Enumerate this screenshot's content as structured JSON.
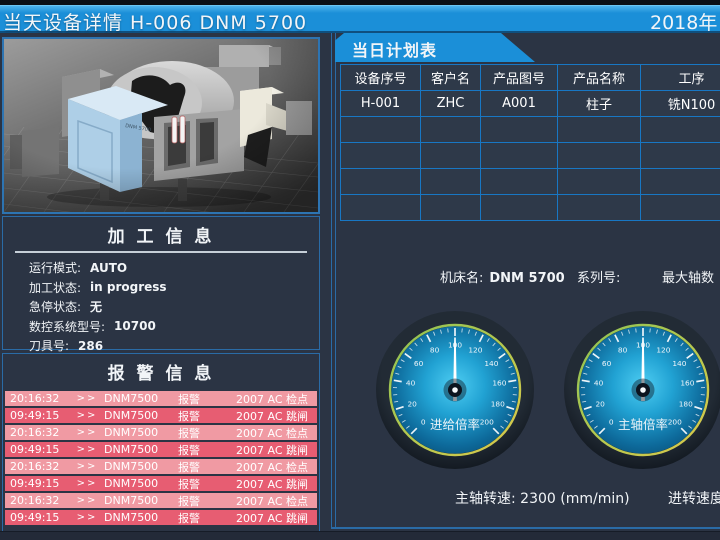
{
  "titlebar": {
    "title": "当天设备详情  H-006   DNM 5700",
    "date": "2018年"
  },
  "machine_panel": {
    "model_label": "DNM 5700"
  },
  "processing_info": {
    "title": "加 工 信 息",
    "fields": [
      {
        "label": "运行模式:",
        "value": "AUTO"
      },
      {
        "label": "加工状态:",
        "value": "in progress"
      },
      {
        "label": "急停状态:",
        "value": "无"
      },
      {
        "label": "数控系统型号:",
        "value": "10700"
      },
      {
        "label": "刀具号:",
        "value": "286"
      }
    ]
  },
  "alarm_info": {
    "title": "报 警 信 息",
    "rows": [
      {
        "time": "20:16:32",
        "sep": ">>",
        "machine": "DNM7500",
        "type": "报警",
        "message": "2007  AC 检点"
      },
      {
        "time": "09:49:15",
        "sep": ">>",
        "machine": "DNM7500",
        "type": "报警",
        "message": "2007  AC 跳闸"
      },
      {
        "time": "20:16:32",
        "sep": ">>",
        "machine": "DNM7500",
        "type": "报警",
        "message": "2007  AC 检点"
      },
      {
        "time": "09:49:15",
        "sep": ">>",
        "machine": "DNM7500",
        "type": "报警",
        "message": "2007  AC 跳闸"
      },
      {
        "time": "20:16:32",
        "sep": ">>",
        "machine": "DNM7500",
        "type": "报警",
        "message": "2007  AC 检点"
      },
      {
        "time": "09:49:15",
        "sep": ">>",
        "machine": "DNM7500",
        "type": "报警",
        "message": "2007  AC 跳闸"
      },
      {
        "time": "20:16:32",
        "sep": ">>",
        "machine": "DNM7500",
        "type": "报警",
        "message": "2007  AC 检点"
      },
      {
        "time": "09:49:15",
        "sep": ">>",
        "machine": "DNM7500",
        "type": "报警",
        "message": "2007  AC 跳闸"
      }
    ]
  },
  "plan_table": {
    "tab_title": "当日计划表",
    "headers": [
      "设备序号",
      "客户名",
      "产品图号",
      "产品名称",
      "工序"
    ],
    "rows": [
      [
        "H-001",
        "ZHC",
        "A001",
        "柱子",
        "铣N100"
      ],
      [
        "",
        "",
        "",
        "",
        ""
      ],
      [
        "",
        "",
        "",
        "",
        ""
      ],
      [
        "",
        "",
        "",
        "",
        ""
      ],
      [
        "",
        "",
        "",
        "",
        ""
      ]
    ]
  },
  "machine_info": {
    "name_label": "机床名:",
    "name_value": "DNM 5700",
    "serial_label": "系列号:",
    "serial_value": "",
    "axis_label": "最大轴数"
  },
  "gauges": [
    {
      "name": "feed-override",
      "label": "进给倍率",
      "min": 0,
      "max": 200,
      "major_step": 20,
      "minor_step": 5,
      "value": 100
    },
    {
      "name": "spindle-override",
      "label": "主轴倍率",
      "min": 0,
      "max": 200,
      "major_step": 20,
      "minor_step": 5,
      "value": 100
    }
  ],
  "bottom_info": {
    "spindle_label": "主轴转速:",
    "spindle_value": "2300",
    "spindle_unit": "(mm/min)",
    "feed_label": "进转速度"
  },
  "colors": {
    "accent_blue": "#1b8fd8",
    "background": "#2b3444",
    "panel_border": "#2a6ba6",
    "table_border": "#1877c4",
    "table_cell_bg": "#2e3949",
    "alarm_light": "#f09aa3",
    "alarm_dark": "#e75d72",
    "gauge_face_center": "#4ecdf2",
    "gauge_face_edge": "#0a5076",
    "gauge_rim_green": "#8ec354",
    "gauge_rim_yellow": "#dcc94b"
  }
}
